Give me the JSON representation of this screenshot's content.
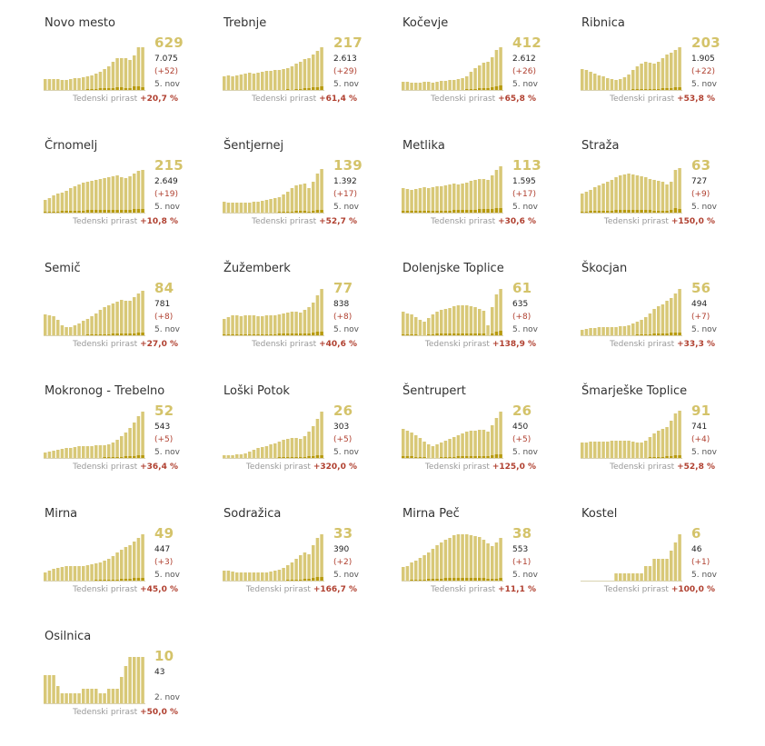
{
  "labels": {
    "growth_label": "Tedenski prirast"
  },
  "colors": {
    "total_fill": "#d8c877",
    "new_fill": "#b79a0e",
    "growth": "#b04030",
    "big_number": "#d4c36a"
  },
  "chart_data": [
    {
      "type": "bar",
      "title": "Novo mesto",
      "active": 629,
      "total": "7.075",
      "delta": "(+52)",
      "date": "5. nov",
      "growth": "+20,7 %",
      "bars": [
        13,
        13,
        13,
        13,
        12,
        12,
        13,
        14,
        14,
        15,
        16,
        17,
        19,
        21,
        24,
        27,
        32,
        36,
        36,
        36,
        34,
        39,
        48,
        48
      ],
      "bars2": [
        0,
        0,
        0,
        0,
        0,
        0,
        0,
        1,
        1,
        1,
        2,
        2,
        2,
        3,
        3,
        3,
        3,
        4,
        4,
        3,
        3,
        5,
        5,
        4
      ]
    },
    {
      "type": "bar",
      "title": "Trebnje",
      "active": 217,
      "total": "2.613",
      "delta": "(+29)",
      "date": "5. nov",
      "growth": "+61,4 %",
      "bars": [
        16,
        17,
        16,
        17,
        18,
        19,
        20,
        19,
        20,
        21,
        22,
        22,
        23,
        23,
        24,
        25,
        27,
        30,
        32,
        35,
        36,
        40,
        44,
        48
      ],
      "bars2": [
        0,
        0,
        0,
        1,
        0,
        0,
        1,
        1,
        0,
        1,
        1,
        0,
        1,
        1,
        1,
        2,
        1,
        2,
        2,
        3,
        3,
        4,
        4,
        5
      ]
    },
    {
      "type": "bar",
      "title": "Kočevje",
      "active": 412,
      "total": "2.612",
      "delta": "(+26)",
      "date": "5. nov",
      "growth": "+65,8 %",
      "bars": [
        10,
        10,
        9,
        9,
        9,
        10,
        10,
        9,
        10,
        11,
        11,
        12,
        12,
        13,
        14,
        16,
        21,
        25,
        28,
        31,
        32,
        37,
        45,
        48
      ],
      "bars2": [
        0,
        0,
        0,
        0,
        0,
        0,
        0,
        0,
        0,
        0,
        0,
        1,
        1,
        1,
        1,
        2,
        2,
        2,
        3,
        3,
        3,
        4,
        5,
        6
      ]
    },
    {
      "type": "bar",
      "title": "Ribnica",
      "active": 203,
      "total": "1.905",
      "delta": "(+22)",
      "date": "5. nov",
      "growth": "+53,8 %",
      "bars": [
        24,
        23,
        21,
        19,
        17,
        16,
        14,
        13,
        12,
        13,
        15,
        18,
        23,
        27,
        30,
        32,
        31,
        30,
        32,
        36,
        40,
        42,
        45,
        48
      ],
      "bars2": [
        0,
        0,
        1,
        0,
        0,
        0,
        0,
        0,
        0,
        1,
        1,
        1,
        2,
        2,
        2,
        2,
        2,
        2,
        2,
        3,
        3,
        3,
        4,
        4
      ]
    },
    {
      "type": "bar",
      "title": "Črnomelj",
      "active": 215,
      "total": "2.649",
      "delta": "(+19)",
      "date": "5. nov",
      "growth": "+10,8 %",
      "bars": [
        15,
        17,
        20,
        22,
        23,
        25,
        28,
        30,
        32,
        34,
        35,
        36,
        37,
        38,
        39,
        40,
        41,
        42,
        40,
        39,
        41,
        44,
        47,
        48
      ],
      "bars2": [
        2,
        2,
        2,
        2,
        3,
        3,
        3,
        3,
        3,
        3,
        4,
        4,
        4,
        4,
        4,
        4,
        4,
        4,
        4,
        4,
        4,
        5,
        5,
        5
      ]
    },
    {
      "type": "bar",
      "title": "Šentjernej",
      "active": 139,
      "total": "1.392",
      "delta": "(+17)",
      "date": "5. nov",
      "growth": "+52,7 %",
      "bars": [
        13,
        12,
        12,
        12,
        12,
        12,
        12,
        13,
        13,
        14,
        15,
        16,
        17,
        18,
        21,
        24,
        28,
        31,
        32,
        33,
        28,
        35,
        44,
        49
      ],
      "bars2": [
        0,
        0,
        0,
        0,
        0,
        0,
        0,
        0,
        1,
        1,
        1,
        1,
        1,
        2,
        2,
        2,
        2,
        3,
        3,
        3,
        2,
        3,
        4,
        4
      ]
    },
    {
      "type": "bar",
      "title": "Metlika",
      "active": 113,
      "total": "1.595",
      "delta": "(+17)",
      "date": "5. nov",
      "growth": "+30,6 %",
      "bars": [
        28,
        27,
        26,
        27,
        28,
        29,
        28,
        29,
        30,
        30,
        31,
        32,
        33,
        32,
        33,
        34,
        36,
        37,
        38,
        38,
        37,
        42,
        48,
        52
      ],
      "bars2": [
        3,
        3,
        3,
        3,
        3,
        3,
        3,
        3,
        3,
        3,
        3,
        3,
        4,
        4,
        4,
        4,
        4,
        4,
        5,
        5,
        5,
        5,
        6,
        6
      ]
    },
    {
      "type": "bar",
      "title": "Straža",
      "active": 63,
      "total": "727",
      "delta": "(+9)",
      "date": "5. nov",
      "growth": "+150,0 %",
      "bars": [
        22,
        24,
        26,
        29,
        31,
        33,
        35,
        37,
        40,
        42,
        43,
        44,
        43,
        42,
        41,
        40,
        38,
        37,
        36,
        35,
        32,
        35,
        48,
        50
      ],
      "bars2": [
        2,
        2,
        3,
        3,
        3,
        3,
        3,
        3,
        4,
        4,
        4,
        4,
        4,
        4,
        4,
        4,
        4,
        3,
        3,
        3,
        3,
        4,
        6,
        5
      ]
    },
    {
      "type": "bar",
      "title": "Semič",
      "active": 84,
      "total": "781",
      "delta": "(+8)",
      "date": "5. nov",
      "growth": "+27,0 %",
      "bars": [
        24,
        23,
        22,
        18,
        12,
        10,
        10,
        12,
        14,
        17,
        19,
        22,
        25,
        29,
        32,
        34,
        36,
        38,
        40,
        39,
        39,
        43,
        47,
        50
      ],
      "bars2": [
        0,
        0,
        0,
        1,
        1,
        1,
        1,
        1,
        1,
        1,
        2,
        2,
        2,
        2,
        2,
        2,
        3,
        3,
        3,
        3,
        3,
        3,
        4,
        4
      ]
    },
    {
      "type": "bar",
      "title": "Žužemberk",
      "active": 77,
      "total": "838",
      "delta": "(+8)",
      "date": "5. nov",
      "growth": "+40,6 %",
      "bars": [
        19,
        21,
        23,
        23,
        22,
        23,
        23,
        23,
        22,
        22,
        23,
        23,
        23,
        24,
        25,
        26,
        27,
        27,
        26,
        29,
        32,
        37,
        45,
        52
      ],
      "bars2": [
        2,
        2,
        2,
        2,
        2,
        2,
        2,
        2,
        2,
        2,
        2,
        2,
        2,
        3,
        3,
        3,
        3,
        3,
        3,
        3,
        3,
        4,
        5,
        5
      ]
    },
    {
      "type": "bar",
      "title": "Dolenjske Toplice",
      "active": 61,
      "total": "635",
      "delta": "(+8)",
      "date": "5. nov",
      "growth": "+138,9 %",
      "bars": [
        27,
        25,
        24,
        21,
        18,
        16,
        20,
        24,
        27,
        29,
        30,
        31,
        33,
        34,
        34,
        34,
        33,
        32,
        30,
        28,
        12,
        32,
        46,
        52
      ],
      "bars2": [
        2,
        2,
        2,
        2,
        1,
        1,
        2,
        2,
        3,
        3,
        3,
        3,
        3,
        3,
        3,
        3,
        3,
        3,
        3,
        3,
        1,
        3,
        5,
        6
      ]
    },
    {
      "type": "bar",
      "title": "Škocjan",
      "active": 56,
      "total": "494",
      "delta": "(+7)",
      "date": "5. nov",
      "growth": "+33,3 %",
      "bars": [
        7,
        8,
        9,
        9,
        10,
        10,
        10,
        10,
        10,
        11,
        11,
        12,
        14,
        16,
        18,
        21,
        25,
        30,
        33,
        35,
        39,
        42,
        47,
        52
      ],
      "bars2": [
        0,
        0,
        0,
        1,
        1,
        1,
        1,
        1,
        1,
        1,
        1,
        1,
        1,
        2,
        2,
        2,
        2,
        3,
        3,
        3,
        3,
        4,
        4,
        4
      ]
    },
    {
      "type": "bar",
      "title": "Mokronog - Trebelno",
      "active": 52,
      "total": "543",
      "delta": "(+5)",
      "date": "5. nov",
      "growth": "+36,4 %",
      "bars": [
        7,
        8,
        9,
        10,
        11,
        12,
        12,
        13,
        14,
        14,
        14,
        14,
        15,
        15,
        15,
        16,
        18,
        21,
        25,
        29,
        34,
        40,
        47,
        52
      ],
      "bars2": [
        0,
        0,
        0,
        1,
        1,
        1,
        1,
        1,
        1,
        1,
        1,
        1,
        1,
        1,
        2,
        2,
        2,
        2,
        2,
        3,
        3,
        3,
        4,
        4
      ]
    },
    {
      "type": "bar",
      "title": "Loški Potok",
      "active": 26,
      "total": "303",
      "delta": "(+5)",
      "date": "5. nov",
      "growth": "+320,0 %",
      "bars": [
        4,
        4,
        4,
        5,
        5,
        6,
        8,
        10,
        12,
        13,
        14,
        16,
        17,
        19,
        21,
        22,
        23,
        23,
        22,
        25,
        30,
        36,
        44,
        52
      ],
      "bars2": [
        0,
        0,
        0,
        0,
        0,
        0,
        1,
        1,
        1,
        1,
        1,
        1,
        1,
        2,
        2,
        2,
        2,
        2,
        2,
        2,
        3,
        3,
        4,
        4
      ]
    },
    {
      "type": "bar",
      "title": "Šentrupert",
      "active": 26,
      "total": "450",
      "delta": "(+5)",
      "date": "5. nov",
      "growth": "+125,0 %",
      "bars": [
        33,
        31,
        29,
        26,
        23,
        19,
        16,
        14,
        16,
        18,
        20,
        22,
        24,
        26,
        28,
        30,
        31,
        31,
        32,
        32,
        30,
        37,
        45,
        52
      ],
      "bars2": [
        3,
        3,
        3,
        2,
        2,
        2,
        1,
        1,
        1,
        2,
        2,
        2,
        2,
        3,
        3,
        3,
        3,
        3,
        3,
        3,
        3,
        4,
        5,
        5
      ]
    },
    {
      "type": "bar",
      "title": "Šmarješke Toplice",
      "active": 91,
      "total": "741",
      "delta": "(+4)",
      "date": "5. nov",
      "growth": "+52,8 %",
      "bars": [
        18,
        18,
        19,
        19,
        19,
        19,
        19,
        20,
        20,
        20,
        20,
        20,
        19,
        18,
        18,
        20,
        24,
        28,
        31,
        33,
        35,
        42,
        50,
        53
      ],
      "bars2": [
        1,
        1,
        1,
        1,
        1,
        1,
        1,
        1,
        1,
        1,
        1,
        1,
        1,
        1,
        1,
        1,
        2,
        2,
        2,
        2,
        3,
        3,
        4,
        4
      ]
    },
    {
      "type": "bar",
      "title": "Mirna",
      "active": 49,
      "total": "447",
      "delta": "(+3)",
      "date": "5. nov",
      "growth": "+45,0 %",
      "bars": [
        10,
        12,
        14,
        15,
        16,
        17,
        17,
        17,
        17,
        17,
        18,
        19,
        20,
        21,
        23,
        25,
        28,
        32,
        35,
        38,
        40,
        44,
        48,
        52
      ],
      "bars2": [
        1,
        1,
        1,
        1,
        1,
        1,
        1,
        1,
        1,
        1,
        1,
        1,
        2,
        2,
        2,
        2,
        2,
        2,
        3,
        3,
        3,
        4,
        4,
        4
      ]
    },
    {
      "type": "bar",
      "title": "Sodražica",
      "active": 33,
      "total": "390",
      "delta": "(+2)",
      "date": "5. nov",
      "growth": "+166,7 %",
      "bars": [
        12,
        12,
        11,
        10,
        10,
        10,
        10,
        10,
        10,
        10,
        10,
        11,
        12,
        13,
        15,
        18,
        21,
        25,
        29,
        32,
        30,
        40,
        48,
        52
      ],
      "bars2": [
        1,
        1,
        1,
        1,
        1,
        1,
        1,
        1,
        1,
        1,
        1,
        1,
        1,
        1,
        1,
        2,
        2,
        2,
        2,
        3,
        3,
        4,
        5,
        5
      ]
    },
    {
      "type": "bar",
      "title": "Mirna Peč",
      "active": 38,
      "total": "553",
      "delta": "(+1)",
      "date": "5. nov",
      "growth": "+11,1 %",
      "bars": [
        16,
        17,
        21,
        23,
        26,
        29,
        32,
        36,
        40,
        43,
        46,
        48,
        51,
        52,
        52,
        52,
        51,
        50,
        49,
        46,
        42,
        39,
        43,
        48
      ],
      "bars2": [
        1,
        1,
        2,
        2,
        2,
        2,
        3,
        3,
        3,
        3,
        4,
        4,
        4,
        4,
        4,
        4,
        4,
        4,
        4,
        4,
        3,
        3,
        3,
        4
      ]
    },
    {
      "type": "bar",
      "title": "Kostel",
      "active": 6,
      "total": "46",
      "delta": "(+1)",
      "date": "5. nov",
      "growth": "+100,0 %",
      "bars": [
        0,
        0,
        0,
        0,
        0,
        0,
        0,
        0,
        9,
        9,
        9,
        9,
        9,
        9,
        9,
        17,
        17,
        25,
        25,
        25,
        25,
        34,
        43,
        52
      ],
      "bars2": [
        0,
        0,
        0,
        0,
        0,
        0,
        0,
        0,
        0,
        0,
        0,
        0,
        0,
        0,
        0,
        0,
        0,
        0,
        0,
        0,
        0,
        0,
        0,
        0
      ]
    },
    {
      "type": "bar",
      "title": "Osilnica",
      "active": 10,
      "total": "43",
      "delta": "",
      "date": "2. nov",
      "growth": "+50,0 %",
      "bars": [
        32,
        32,
        32,
        20,
        12,
        12,
        12,
        12,
        12,
        17,
        17,
        17,
        17,
        12,
        12,
        17,
        17,
        17,
        30,
        42,
        52,
        52,
        52,
        52
      ],
      "bars2": [
        0,
        0,
        0,
        0,
        0,
        0,
        0,
        0,
        0,
        0,
        0,
        0,
        0,
        0,
        0,
        0,
        0,
        0,
        0,
        0,
        0,
        0,
        0,
        0
      ]
    }
  ]
}
